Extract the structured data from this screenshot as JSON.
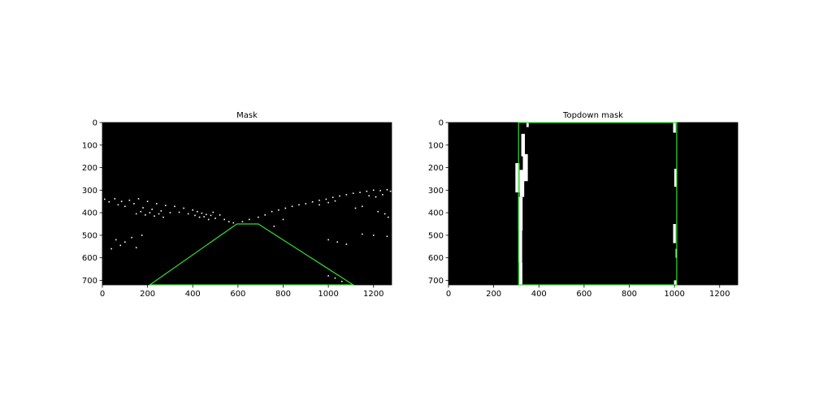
{
  "chart_data": [
    {
      "type": "image",
      "title": "Mask",
      "xlim": [
        0,
        1280
      ],
      "ylim": [
        720,
        0
      ],
      "xticks": [
        0,
        200,
        400,
        600,
        800,
        1000,
        1200
      ],
      "yticks": [
        0,
        100,
        200,
        300,
        400,
        500,
        600,
        700
      ],
      "background": "#000000",
      "outline_color": "#33dd33",
      "region_polygon": [
        [
          210,
          720
        ],
        [
          595,
          450
        ],
        [
          690,
          450
        ],
        [
          1110,
          720
        ]
      ],
      "mask_pixel_color": "#ffffff",
      "mask_pixels": [
        [
          10,
          340
        ],
        [
          30,
          352
        ],
        [
          55,
          338
        ],
        [
          70,
          365
        ],
        [
          85,
          350
        ],
        [
          100,
          372
        ],
        [
          120,
          345
        ],
        [
          140,
          360
        ],
        [
          160,
          338
        ],
        [
          180,
          378
        ],
        [
          200,
          350
        ],
        [
          220,
          385
        ],
        [
          240,
          360
        ],
        [
          260,
          392
        ],
        [
          280,
          368
        ],
        [
          300,
          400
        ],
        [
          320,
          372
        ],
        [
          340,
          398
        ],
        [
          360,
          380
        ],
        [
          380,
          405
        ],
        [
          400,
          388
        ],
        [
          410,
          412
        ],
        [
          420,
          395
        ],
        [
          430,
          420
        ],
        [
          440,
          402
        ],
        [
          450,
          418
        ],
        [
          460,
          408
        ],
        [
          470,
          430
        ],
        [
          480,
          412
        ],
        [
          490,
          398
        ],
        [
          500,
          425
        ],
        [
          150,
          405
        ],
        [
          170,
          395
        ],
        [
          190,
          410
        ],
        [
          210,
          400
        ],
        [
          230,
          415
        ],
        [
          250,
          405
        ],
        [
          270,
          420
        ],
        [
          60,
          520
        ],
        [
          80,
          545
        ],
        [
          100,
          530
        ],
        [
          130,
          510
        ],
        [
          150,
          555
        ],
        [
          175,
          500
        ],
        [
          40,
          560
        ],
        [
          520,
          410
        ],
        [
          540,
          430
        ],
        [
          560,
          440
        ],
        [
          580,
          445
        ],
        [
          620,
          440
        ],
        [
          650,
          430
        ],
        [
          690,
          420
        ],
        [
          720,
          410
        ],
        [
          750,
          395
        ],
        [
          780,
          388
        ],
        [
          810,
          380
        ],
        [
          840,
          372
        ],
        [
          870,
          365
        ],
        [
          900,
          360
        ],
        [
          930,
          352
        ],
        [
          960,
          345
        ],
        [
          990,
          340
        ],
        [
          1020,
          332
        ],
        [
          1050,
          326
        ],
        [
          1080,
          320
        ],
        [
          1110,
          314
        ],
        [
          1140,
          310
        ],
        [
          1170,
          305
        ],
        [
          1200,
          300
        ],
        [
          1230,
          302
        ],
        [
          1260,
          298
        ],
        [
          1275,
          305
        ],
        [
          1240,
          320
        ],
        [
          1210,
          330
        ],
        [
          1180,
          325
        ],
        [
          1000,
          355
        ],
        [
          1030,
          348
        ],
        [
          960,
          365
        ],
        [
          1120,
          380
        ],
        [
          1150,
          372
        ],
        [
          1250,
          405
        ],
        [
          1265,
          420
        ],
        [
          1220,
          395
        ],
        [
          800,
          430
        ],
        [
          760,
          460
        ],
        [
          1000,
          520
        ],
        [
          1040,
          530
        ],
        [
          1080,
          540
        ],
        [
          1150,
          495
        ],
        [
          1200,
          500
        ],
        [
          1260,
          505
        ],
        [
          1000,
          680
        ],
        [
          1030,
          690
        ],
        [
          1060,
          705
        ]
      ]
    },
    {
      "type": "image",
      "title": "Topdown mask",
      "xlim": [
        0,
        1280
      ],
      "ylim": [
        720,
        0
      ],
      "xticks": [
        0,
        200,
        400,
        600,
        800,
        1000,
        1200
      ],
      "yticks": [
        0,
        100,
        200,
        300,
        400,
        500,
        600,
        700
      ],
      "background": "#000000",
      "outline_color": "#33dd33",
      "region_polygon": [
        [
          310,
          0
        ],
        [
          1010,
          0
        ],
        [
          1010,
          720
        ],
        [
          310,
          720
        ]
      ],
      "mask_pixel_color": "#ffffff",
      "lane_blobs": [
        {
          "x": 350,
          "y0": 0,
          "y1": 20,
          "w": 10
        },
        {
          "x": 330,
          "y0": 50,
          "y1": 150,
          "w": 16
        },
        {
          "x": 340,
          "y0": 140,
          "y1": 260,
          "w": 22
        },
        {
          "x": 305,
          "y0": 180,
          "y1": 310,
          "w": 18
        },
        {
          "x": 325,
          "y0": 210,
          "y1": 330,
          "w": 20
        },
        {
          "x": 318,
          "y0": 330,
          "y1": 480,
          "w": 20
        },
        {
          "x": 318,
          "y0": 480,
          "y1": 620,
          "w": 16
        },
        {
          "x": 320,
          "y0": 620,
          "y1": 720,
          "w": 14
        },
        {
          "x": 1000,
          "y0": 0,
          "y1": 45,
          "w": 12
        },
        {
          "x": 1005,
          "y0": 205,
          "y1": 285,
          "w": 12
        },
        {
          "x": 1000,
          "y0": 450,
          "y1": 535,
          "w": 12
        },
        {
          "x": 1008,
          "y0": 560,
          "y1": 600,
          "w": 6
        },
        {
          "x": 1005,
          "y0": 700,
          "y1": 718,
          "w": 14
        }
      ]
    }
  ]
}
